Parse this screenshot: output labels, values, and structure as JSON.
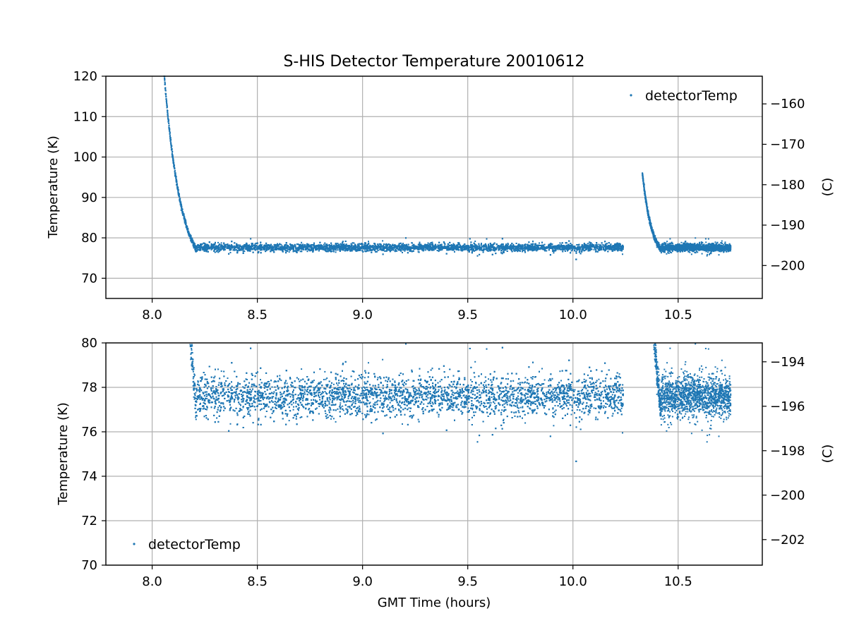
{
  "chart_data": {
    "type": "scatter",
    "title": "S-HIS Detector Temperature 20010612",
    "xlabel": "GMT Time (hours)",
    "xlim": [
      7.78,
      10.9
    ],
    "x_ticks": [
      8.0,
      8.5,
      9.0,
      9.5,
      10.0,
      10.5
    ],
    "x_tick_labels": [
      "8.0",
      "8.5",
      "9.0",
      "9.5",
      "10.0",
      "10.5"
    ],
    "series_name": "detectorTemp",
    "series_color": "#1f77b4",
    "grid": true,
    "panels": [
      {
        "ylabel": "Temperature (K)",
        "ylim": [
          65,
          120
        ],
        "y_ticks": [
          70,
          80,
          90,
          100,
          110,
          120
        ],
        "y_tick_labels": [
          "70",
          "80",
          "90",
          "100",
          "110",
          "120"
        ],
        "y2label": "(C)",
        "y2_ticks": [
          -200,
          -190,
          -180,
          -170,
          -160
        ],
        "y2_tick_labels": [
          "−200",
          "−190",
          "−180",
          "−170",
          "−160"
        ],
        "legend_position": "upper right"
      },
      {
        "ylabel": "Temperature (K)",
        "ylim": [
          70,
          80
        ],
        "y_ticks": [
          70,
          72,
          74,
          76,
          78,
          80
        ],
        "y_tick_labels": [
          "70",
          "72",
          "74",
          "76",
          "78",
          "80"
        ],
        "y2label": "(C)",
        "y2_ticks": [
          -202,
          -200,
          -198,
          -196,
          -194
        ],
        "y2_tick_labels": [
          "−202",
          "−200",
          "−198",
          "−196",
          "−194"
        ],
        "legend_position": "lower left"
      }
    ],
    "segments": [
      {
        "kind": "cooldown",
        "x_start": 8.05,
        "x_end": 8.21,
        "y_start": 125,
        "y_end": 77
      },
      {
        "kind": "plateau",
        "x_start": 8.21,
        "x_end": 10.24,
        "y_mean": 77.6,
        "y_spread": 1.0
      },
      {
        "kind": "cooldown",
        "x_start": 10.33,
        "x_end": 10.42,
        "y_start": 96,
        "y_end": 77
      },
      {
        "kind": "plateau",
        "x_start": 10.42,
        "x_end": 10.75,
        "y_mean": 77.6,
        "y_spread": 1.0
      }
    ]
  }
}
